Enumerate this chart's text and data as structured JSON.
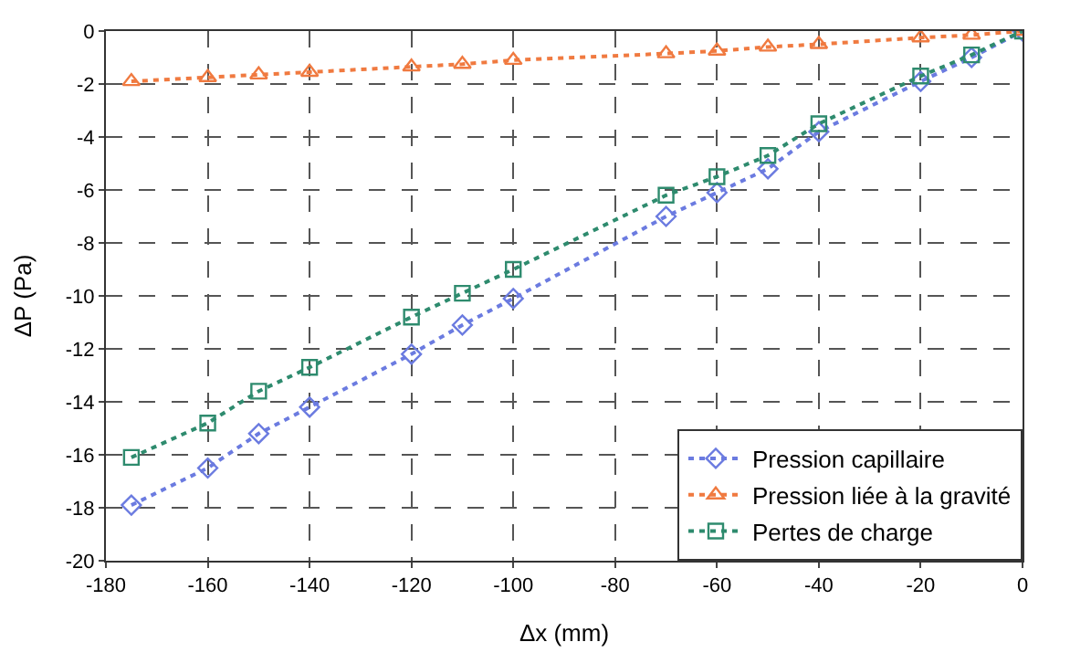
{
  "chart_data": {
    "type": "line",
    "xlabel": "Δx (mm)",
    "ylabel": "ΔP (Pa)",
    "x": [
      -175,
      -160,
      -150,
      -140,
      -120,
      -110,
      -100,
      -70,
      -60,
      -50,
      -40,
      -20,
      -10,
      0
    ],
    "series": [
      {
        "name": "Pression capillaire",
        "color": "#6b7be0",
        "marker": "diamond",
        "values": [
          -17.9,
          -16.5,
          -15.2,
          -14.2,
          -12.2,
          -11.1,
          -10.1,
          -7.0,
          -6.1,
          -5.2,
          -3.8,
          -1.9,
          -1.0,
          0
        ]
      },
      {
        "name": "Pression liée à la gravité",
        "color": "#f07a40",
        "marker": "triangle",
        "values": [
          -1.9,
          -1.75,
          -1.65,
          -1.55,
          -1.35,
          -1.25,
          -1.1,
          -0.85,
          -0.75,
          -0.6,
          -0.5,
          -0.25,
          -0.15,
          0
        ]
      },
      {
        "name": "Pertes de charge",
        "color": "#2e8b6e",
        "marker": "square",
        "values": [
          -16.1,
          -14.8,
          -13.6,
          -12.7,
          -10.8,
          -9.9,
          -9.0,
          -6.2,
          -5.5,
          -4.7,
          -3.5,
          -1.7,
          -0.9,
          0
        ]
      }
    ],
    "xlim": [
      -180,
      0
    ],
    "xticks": [
      -180,
      -160,
      -140,
      -120,
      -100,
      -80,
      -60,
      -40,
      -20,
      0
    ],
    "ylim": [
      -20,
      0
    ],
    "yticks": [
      -20,
      -18,
      -16,
      -14,
      -12,
      -10,
      -8,
      -6,
      -4,
      -2,
      0
    ],
    "grid": true,
    "legend": "bottom right",
    "line_style": "dotted"
  }
}
